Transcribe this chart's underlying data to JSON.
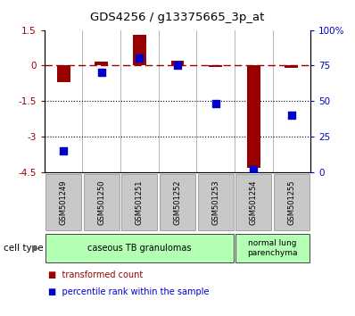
{
  "title": "GDS4256 / g13375665_3p_at",
  "samples": [
    "GSM501249",
    "GSM501250",
    "GSM501251",
    "GSM501252",
    "GSM501253",
    "GSM501254",
    "GSM501255"
  ],
  "red_values": [
    -0.7,
    0.15,
    1.3,
    0.2,
    -0.05,
    -4.3,
    -0.1
  ],
  "blue_percentile": [
    15,
    70,
    80,
    75,
    48,
    2,
    40
  ],
  "ylim_left": [
    -4.5,
    1.5
  ],
  "ylim_right": [
    0,
    100
  ],
  "yticks_left": [
    1.5,
    0,
    -1.5,
    -3,
    -4.5
  ],
  "yticks_right": [
    0,
    25,
    50,
    75,
    100
  ],
  "bar_color": "#990000",
  "dot_color": "#0000cc",
  "bar_width": 0.35,
  "dot_size": 35,
  "legend_red": "transformed count",
  "legend_blue": "percentile rank within the sample",
  "tick_label_bg": "#c8c8c8",
  "cell_group1_label": "caseous TB granulomas",
  "cell_group2_label": "normal lung\nparenchyma",
  "cell_group1_color": "#b3ffb3",
  "cell_group2_color": "#b3ffb3",
  "cell_type_label": "cell type"
}
